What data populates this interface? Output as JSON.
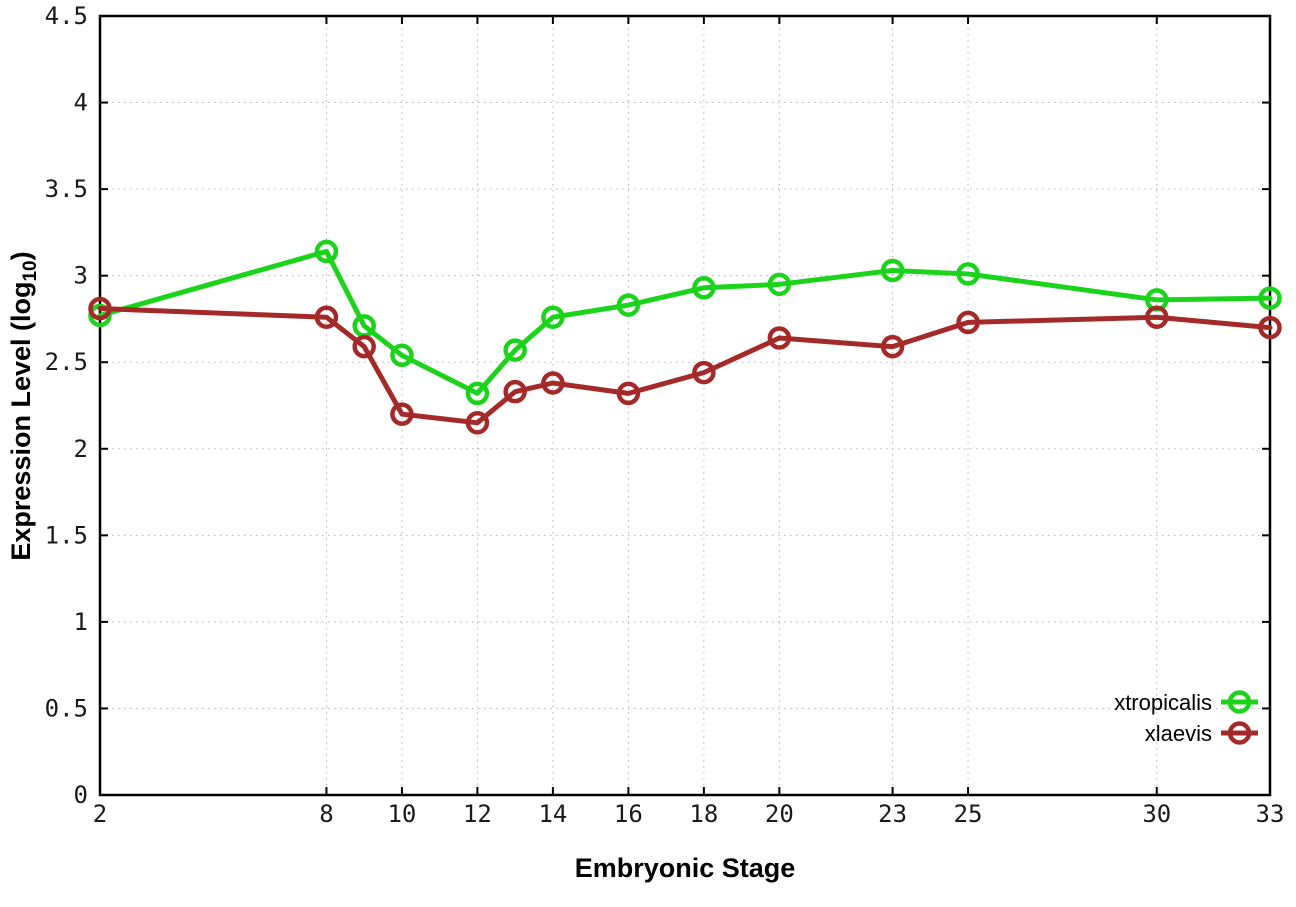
{
  "chart_data": {
    "type": "line",
    "title": "",
    "xlabel": "Embryonic Stage",
    "ylabel": "Expression Level (log10)",
    "ylabel_parts": {
      "prefix": "Expression Level (log",
      "sub": "10",
      "suffix": ")"
    },
    "xlim": [
      2,
      33
    ],
    "ylim": [
      0,
      4.5
    ],
    "x_ticks": [
      2,
      8,
      10,
      12,
      14,
      16,
      18,
      20,
      23,
      25,
      30,
      33
    ],
    "y_ticks": [
      0,
      0.5,
      1,
      1.5,
      2,
      2.5,
      3,
      3.5,
      4,
      4.5
    ],
    "grid": true,
    "legend_position": "inside-bottom-right",
    "x": [
      2,
      8,
      9,
      10,
      12,
      13,
      14,
      16,
      18,
      20,
      23,
      25,
      30,
      33
    ],
    "series": [
      {
        "name": "xtropicalis",
        "color": "#1cd31c",
        "values": [
          2.77,
          3.14,
          2.71,
          2.54,
          2.32,
          2.57,
          2.76,
          2.83,
          2.93,
          2.95,
          3.03,
          3.01,
          2.86,
          2.87
        ]
      },
      {
        "name": "xlaevis",
        "color": "#a42a2a",
        "values": [
          2.81,
          2.76,
          2.59,
          2.2,
          2.15,
          2.33,
          2.38,
          2.32,
          2.44,
          2.64,
          2.59,
          2.73,
          2.76,
          2.7
        ]
      }
    ]
  }
}
